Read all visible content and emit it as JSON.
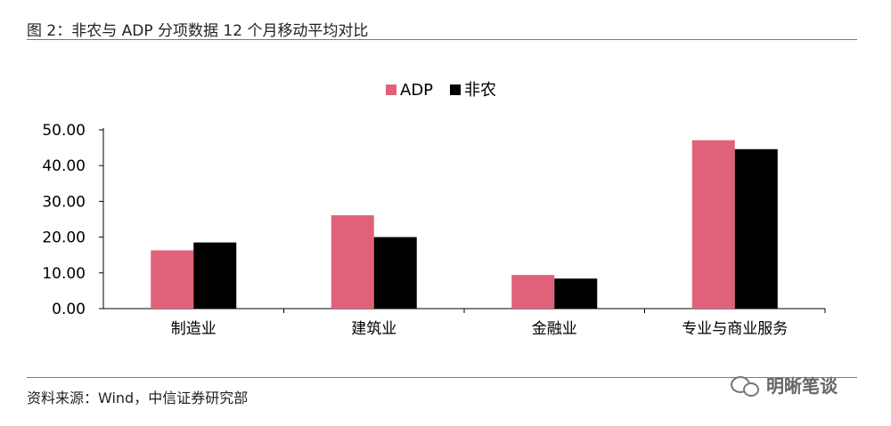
{
  "figure": {
    "title": "图 2：非农与 ADP 分项数据 12 个月移动平均对比",
    "source": "资料来源：Wind，中信证券研究部",
    "watermark": "明晰笔谈"
  },
  "colors": {
    "adp": "#e0627a",
    "nonfarm": "#000000",
    "rule": "#d9534f",
    "axis": "#000000"
  },
  "chart_data": {
    "type": "bar",
    "title": "",
    "xlabel": "",
    "ylabel": "",
    "categories": [
      "制造业",
      "建筑业",
      "金融业",
      "专业与商业服务"
    ],
    "series": [
      {
        "name": "ADP",
        "values": [
          16.3,
          26.1,
          9.4,
          47.1
        ]
      },
      {
        "name": "非农",
        "values": [
          18.5,
          20.0,
          8.4,
          44.6
        ]
      }
    ],
    "ylim": [
      0,
      50
    ],
    "yticks": [
      "0.00",
      "10.00",
      "20.00",
      "30.00",
      "40.00",
      "50.00"
    ],
    "legend_position": "top-center",
    "grid": false
  }
}
